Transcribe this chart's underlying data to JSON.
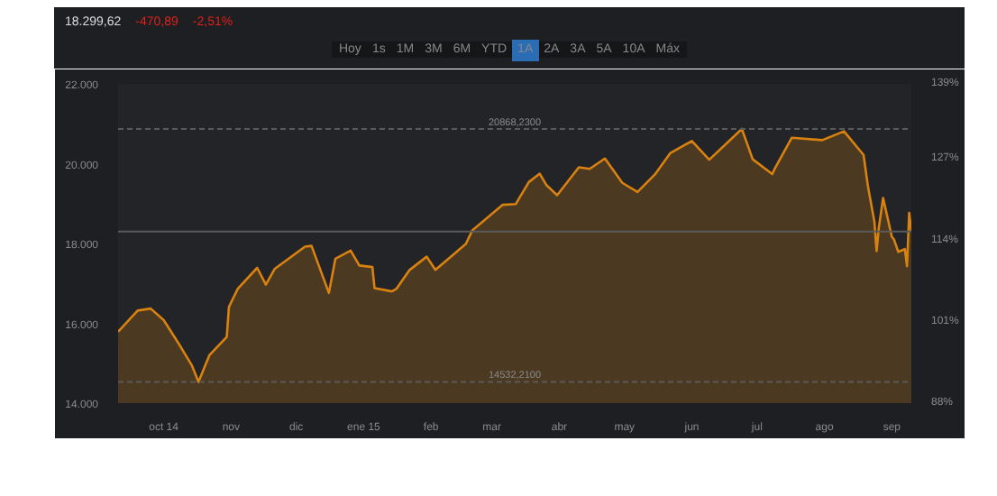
{
  "chart_data": {
    "type": "area",
    "color": "#d9820f",
    "annotations": [
      "18.299,62",
      "-470,89",
      "-2,51%",
      "Hoy",
      "1s",
      "1M",
      "3M",
      "6M",
      "YTD",
      "1A",
      "2A",
      "3A",
      "5A",
      "10A",
      "Máx"
    ],
    "x": [
      "2014-09-10",
      "2014-09-19",
      "2014-09-25",
      "2014-10-01",
      "2014-10-08",
      "2014-10-14",
      "2014-10-17",
      "2014-10-22",
      "2014-10-30",
      "2014-10-31",
      "2014-11-04",
      "2014-11-13",
      "2014-11-17",
      "2014-11-21",
      "2014-12-05",
      "2014-12-08",
      "2014-12-16",
      "2014-12-19",
      "2014-12-26",
      "2014-12-30",
      "2015-01-05",
      "2015-01-06",
      "2015-01-14",
      "2015-01-16",
      "2015-01-22",
      "2015-01-30",
      "2015-02-03",
      "2015-02-17",
      "2015-02-20",
      "2015-03-06",
      "2015-03-12",
      "2015-03-18",
      "2015-03-23",
      "2015-03-26",
      "2015-03-31",
      "2015-04-10",
      "2015-04-15",
      "2015-04-22",
      "2015-04-30",
      "2015-05-07",
      "2015-05-15",
      "2015-05-22",
      "2015-06-01",
      "2015-06-09",
      "2015-06-24",
      "2015-06-29",
      "2015-07-08",
      "2015-07-09",
      "2015-07-17",
      "2015-07-31",
      "2015-08-10",
      "2015-08-19",
      "2015-08-21",
      "2015-08-24",
      "2015-08-25",
      "2015-08-26",
      "2015-08-28",
      "2015-09-01",
      "2015-09-02",
      "2015-09-04",
      "2015-09-07",
      "2015-09-08",
      "2015-09-09",
      "2015-09-10"
    ],
    "values": [
      15790,
      16320,
      16370,
      16080,
      15480,
      14940,
      14530,
      15200,
      15660,
      16410,
      16860,
      17390,
      16970,
      17360,
      17920,
      17940,
      16760,
      17620,
      17820,
      17450,
      17410,
      16880,
      16800,
      16860,
      17330,
      17670,
      17340,
      17990,
      18330,
      18970,
      18990,
      19540,
      19750,
      19470,
      19210,
      19910,
      19870,
      20130,
      19520,
      19290,
      19730,
      20260,
      20570,
      20100,
      20870,
      20110,
      19740,
      19860,
      20650,
      20590,
      20810,
      20220,
      19440,
      18540,
      17810,
      18380,
      19140,
      18170,
      18100,
      17790,
      17860,
      17430,
      18770,
      18300
    ],
    "xlim": [
      "2014-09-10",
      "2015-09-10"
    ],
    "xticks": [
      {
        "value": "2014-10-01",
        "label": "oct 14"
      },
      {
        "value": "2014-11-01",
        "label": "nov"
      },
      {
        "value": "2014-12-01",
        "label": "dic"
      },
      {
        "value": "2015-01-01",
        "label": "ene 15"
      },
      {
        "value": "2015-02-01",
        "label": "feb"
      },
      {
        "value": "2015-03-01",
        "label": "mar"
      },
      {
        "value": "2015-04-01",
        "label": "abr"
      },
      {
        "value": "2015-05-01",
        "label": "may"
      },
      {
        "value": "2015-06-01",
        "label": "jun"
      },
      {
        "value": "2015-07-01",
        "label": "jul"
      },
      {
        "value": "2015-08-01",
        "label": "ago"
      },
      {
        "value": "2015-09-01",
        "label": "sep"
      }
    ],
    "ylim": [
      14000,
      22000
    ],
    "yticks": [
      {
        "value": 14000,
        "label": "14.000"
      },
      {
        "value": 16000,
        "label": "16.000"
      },
      {
        "value": 18000,
        "label": "18.000"
      },
      {
        "value": 20000,
        "label": "20.000"
      },
      {
        "value": 22000,
        "label": "22.000"
      }
    ],
    "y2lim": [
      88,
      139
    ],
    "y2ticks": [
      {
        "value": 88,
        "label": "88%"
      },
      {
        "value": 101,
        "label": "101%"
      },
      {
        "value": 114,
        "label": "114%"
      },
      {
        "value": 127,
        "label": "127%"
      },
      {
        "value": 139,
        "label": "139%"
      }
    ],
    "ref_lines": [
      {
        "axis": "y",
        "value": 20868,
        "label": "20868,2300",
        "line_style": "dashed"
      },
      {
        "axis": "y",
        "value": 14532,
        "label": "14532,2100",
        "line_style": "dashed"
      },
      {
        "axis": "y",
        "value": 18299.62,
        "label": null,
        "line_style": "solid"
      }
    ]
  }
}
